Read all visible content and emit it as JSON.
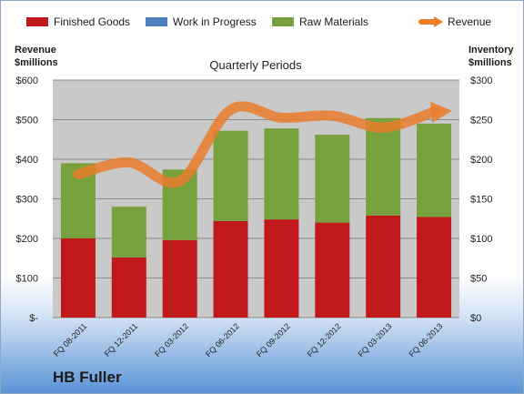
{
  "chart_data": {
    "type": "bar",
    "title": "Quarterly Periods",
    "categories": [
      "FQ 08-2011",
      "FQ 12-2011",
      "FQ 03-2012",
      "FQ 06-2012",
      "FQ 09-2012",
      "FQ 12-2012",
      "FQ 03-2013",
      "FQ 06-2013"
    ],
    "stacked": true,
    "series": [
      {
        "name": "Finished Goods",
        "axis": "right",
        "color": "#c0191c",
        "values": [
          100,
          76,
          98,
          122,
          124,
          120,
          129,
          127
        ]
      },
      {
        "name": "Work in Progress",
        "axis": "right",
        "color": "#4f81bd",
        "values": [
          0,
          0,
          0,
          0,
          0,
          0,
          0,
          0
        ]
      },
      {
        "name": "Raw Materials",
        "axis": "right",
        "color": "#77a13d",
        "values": [
          95,
          64,
          89,
          114,
          115,
          111,
          123,
          118
        ]
      },
      {
        "name": "Revenue",
        "type": "line",
        "axis": "left",
        "color": "#e97d2c",
        "values": [
          362,
          392,
          345,
          525,
          505,
          510,
          480,
          520
        ]
      }
    ],
    "left_axis": {
      "label_line1": "Revenue",
      "label_line2": "$millions",
      "ylim": [
        0,
        600
      ],
      "ticks": [
        "$-",
        "$100",
        "$200",
        "$300",
        "$400",
        "$500",
        "$600"
      ]
    },
    "right_axis": {
      "label_line1": "Inventory",
      "label_line2": "$millions",
      "ylim": [
        0,
        300
      ],
      "ticks": [
        "$0",
        "$50",
        "$100",
        "$150",
        "$200",
        "$250",
        "$300"
      ]
    },
    "grid": true,
    "legend_position": "top"
  },
  "brand": "HB Fuller"
}
